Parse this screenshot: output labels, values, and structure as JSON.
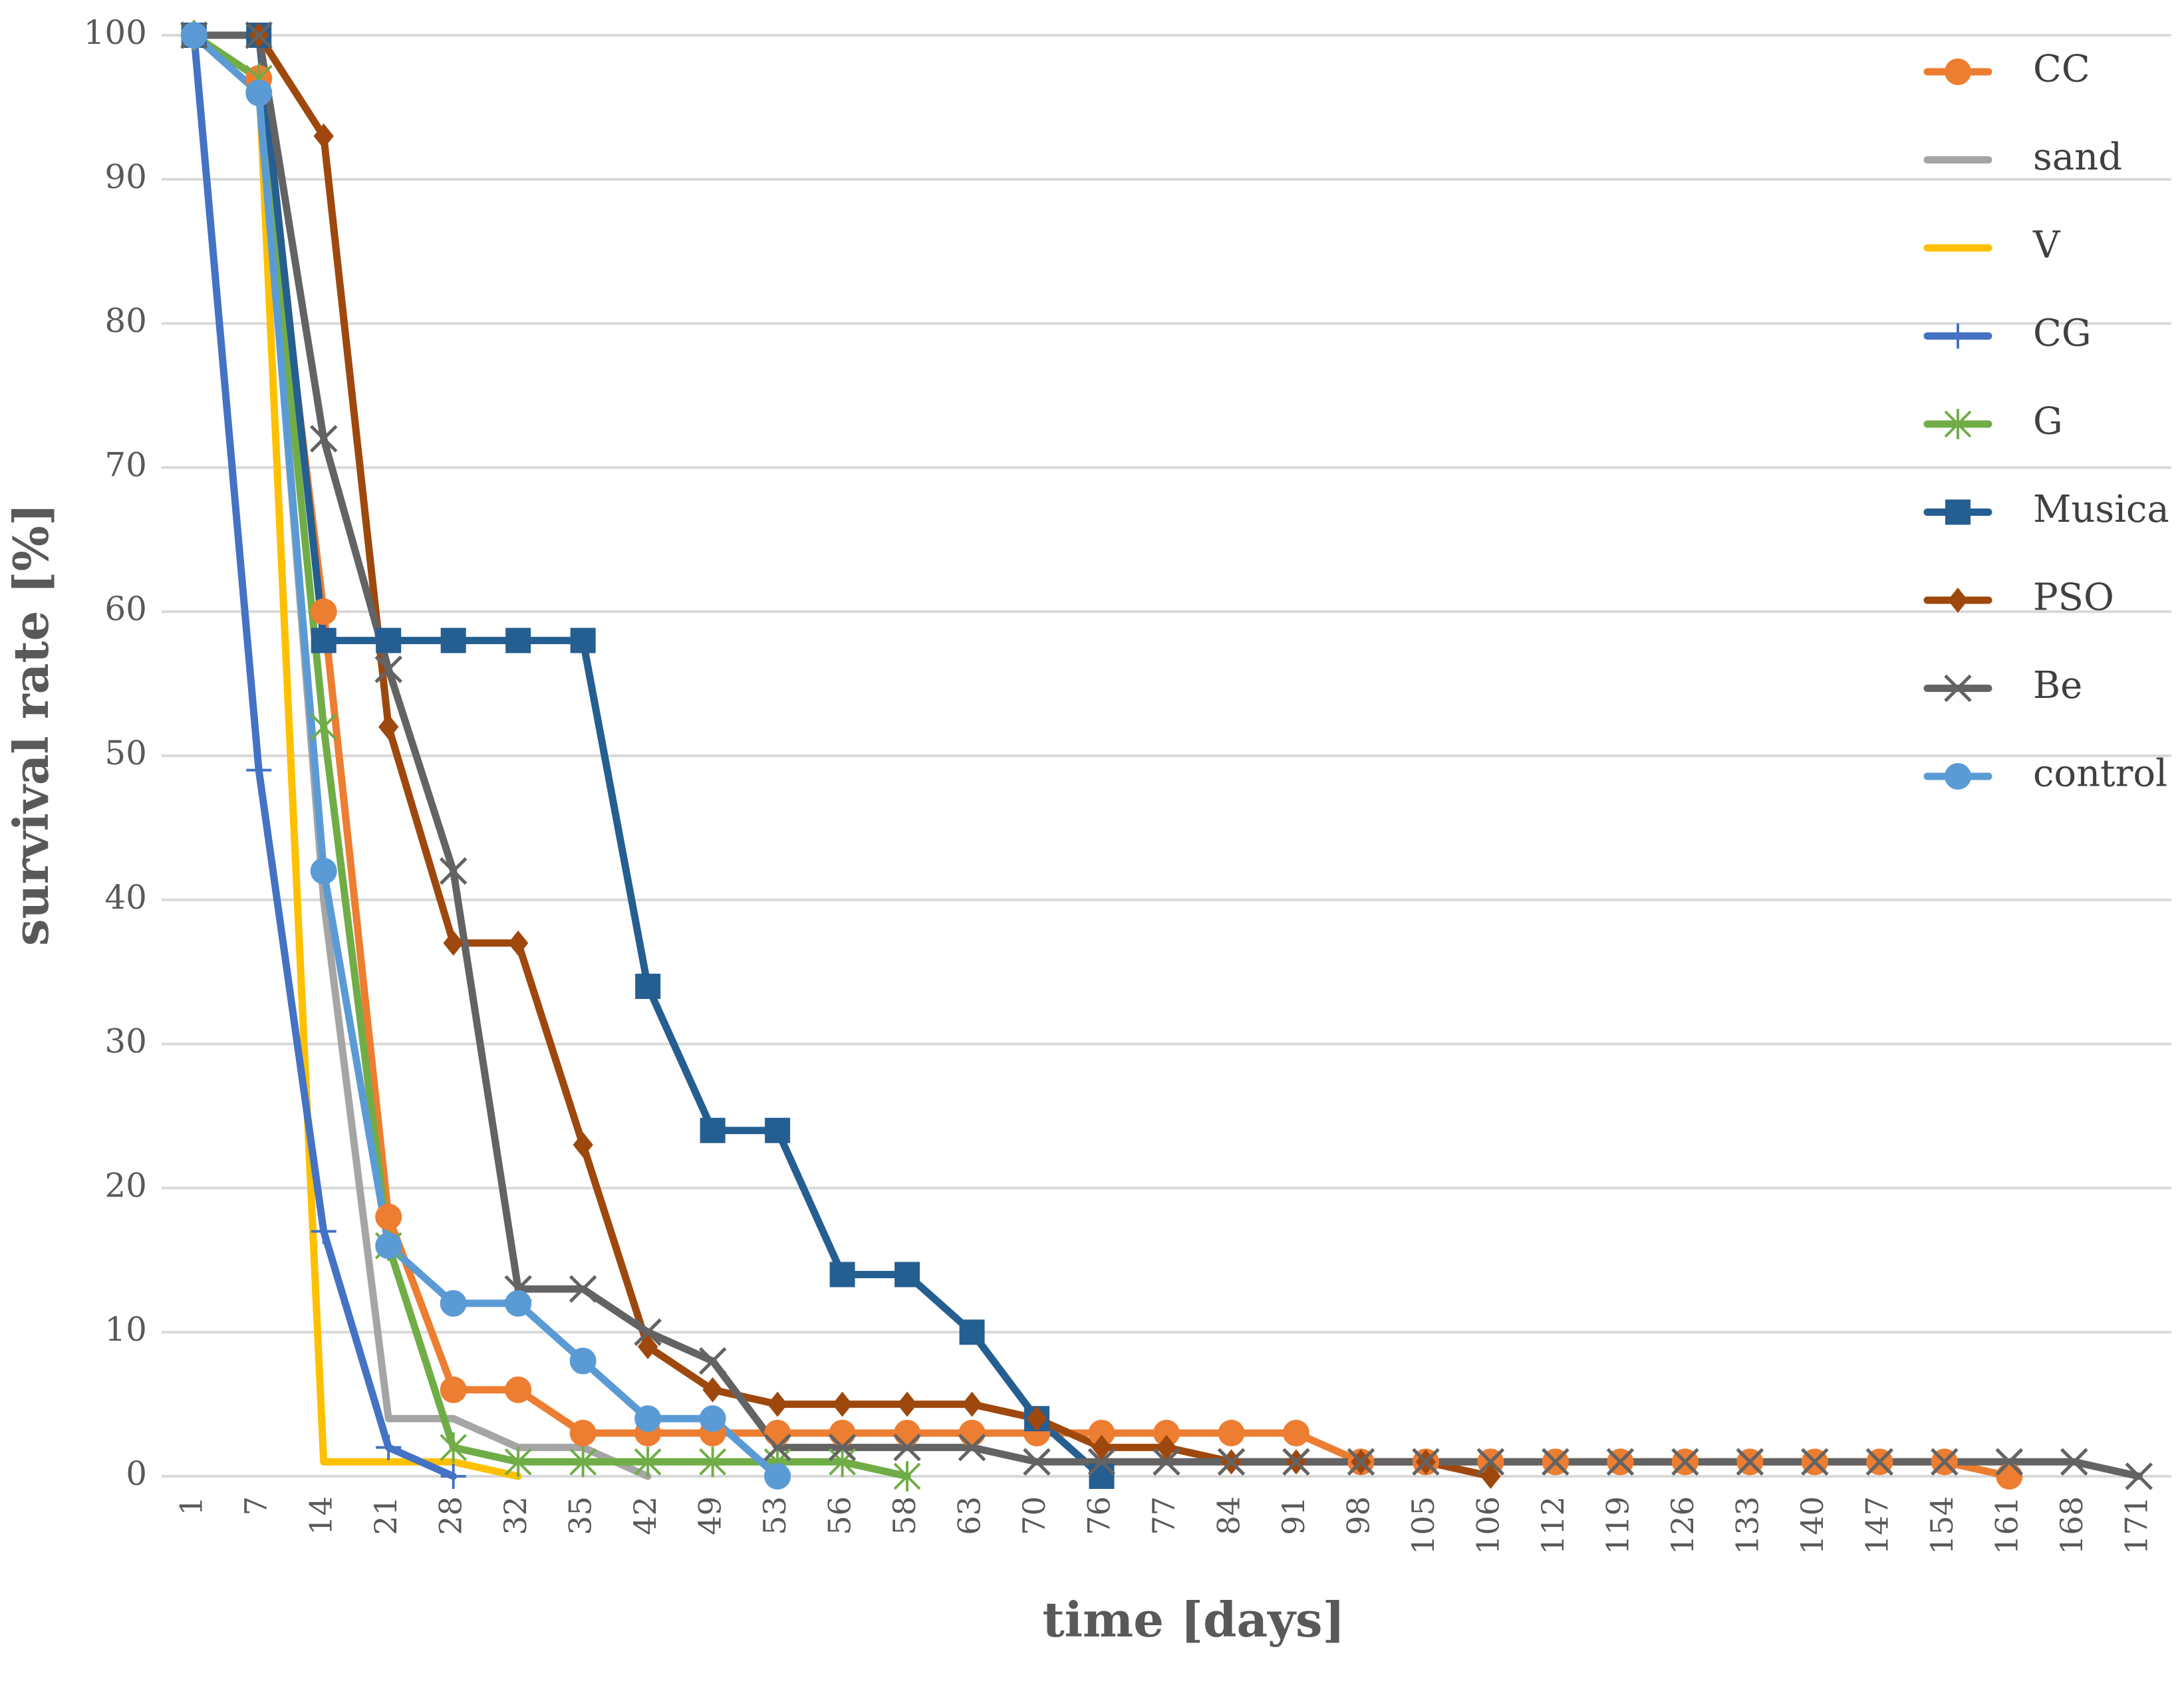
{
  "chart_data": {
    "type": "line",
    "xlabel": "time [days]",
    "ylabel": "survival rate [%]",
    "ylim": [
      0,
      100
    ],
    "yticks": [
      0,
      10,
      20,
      30,
      40,
      50,
      60,
      70,
      80,
      90,
      100
    ],
    "grid": true,
    "legend": "right",
    "categories": [
      "1",
      "7",
      "14",
      "21",
      "28",
      "32",
      "35",
      "42",
      "49",
      "53",
      "56",
      "58",
      "63",
      "70",
      "76",
      "77",
      "84",
      "91",
      "98",
      "105",
      "106",
      "112",
      "119",
      "126",
      "133",
      "140",
      "147",
      "154",
      "161",
      "168",
      "171"
    ],
    "series": [
      {
        "name": "CC",
        "color": "#ED7D31",
        "marker": "circle",
        "values": [
          100,
          97,
          60,
          18,
          6,
          6,
          3,
          3,
          3,
          3,
          3,
          3,
          3,
          3,
          3,
          3,
          3,
          3,
          1,
          1,
          1,
          1,
          1,
          1,
          1,
          1,
          1,
          1,
          0,
          null,
          null
        ]
      },
      {
        "name": "sand",
        "color": "#A5A5A5",
        "marker": "none",
        "values": [
          100,
          97,
          40,
          4,
          4,
          2,
          2,
          0,
          null,
          null,
          null,
          null,
          null,
          null,
          null,
          null,
          null,
          null,
          null,
          null,
          null,
          null,
          null,
          null,
          null,
          null,
          null,
          null,
          null,
          null,
          null
        ]
      },
      {
        "name": "V",
        "color": "#FFC000",
        "marker": "none",
        "values": [
          100,
          97,
          1,
          1,
          1,
          0,
          null,
          null,
          null,
          null,
          null,
          null,
          null,
          null,
          null,
          null,
          null,
          null,
          null,
          null,
          null,
          null,
          null,
          null,
          null,
          null,
          null,
          null,
          null,
          null,
          null
        ]
      },
      {
        "name": "CG",
        "color": "#4472C4",
        "marker": "plus",
        "values": [
          100,
          49,
          17,
          2,
          0,
          null,
          null,
          null,
          null,
          null,
          null,
          null,
          null,
          null,
          null,
          null,
          null,
          null,
          null,
          null,
          null,
          null,
          null,
          null,
          null,
          null,
          null,
          null,
          null,
          null,
          null
        ]
      },
      {
        "name": "G",
        "color": "#70AD47",
        "marker": "star",
        "values": [
          100,
          97,
          52,
          16,
          2,
          1,
          1,
          1,
          1,
          1,
          1,
          0,
          null,
          null,
          null,
          null,
          null,
          null,
          null,
          null,
          null,
          null,
          null,
          null,
          null,
          null,
          null,
          null,
          null,
          null,
          null
        ]
      },
      {
        "name": "Musica",
        "color": "#255E91",
        "marker": "square",
        "values": [
          100,
          100,
          58,
          58,
          58,
          58,
          58,
          34,
          24,
          24,
          14,
          14,
          10,
          4,
          0,
          null,
          null,
          null,
          null,
          null,
          null,
          null,
          null,
          null,
          null,
          null,
          null,
          null,
          null,
          null,
          null
        ]
      },
      {
        "name": "PSO",
        "color": "#9E480E",
        "marker": "diamond",
        "values": [
          100,
          100,
          93,
          52,
          37,
          37,
          23,
          9,
          6,
          5,
          5,
          5,
          5,
          4,
          2,
          2,
          1,
          1,
          1,
          1,
          0,
          null,
          null,
          null,
          null,
          null,
          null,
          null,
          null,
          null,
          null
        ]
      },
      {
        "name": "Be",
        "color": "#636363",
        "marker": "x",
        "values": [
          100,
          100,
          72,
          56,
          42,
          13,
          13,
          10,
          8,
          2,
          2,
          2,
          2,
          1,
          1,
          1,
          1,
          1,
          1,
          1,
          1,
          1,
          1,
          1,
          1,
          1,
          1,
          1,
          1,
          1,
          0
        ]
      },
      {
        "name": "control",
        "color": "#5B9BD5",
        "marker": "circle",
        "values": [
          100,
          96,
          42,
          16,
          12,
          12,
          8,
          4,
          4,
          0,
          null,
          null,
          null,
          null,
          null,
          null,
          null,
          null,
          null,
          null,
          null,
          null,
          null,
          null,
          null,
          null,
          null,
          null,
          null,
          null,
          null
        ]
      }
    ]
  }
}
